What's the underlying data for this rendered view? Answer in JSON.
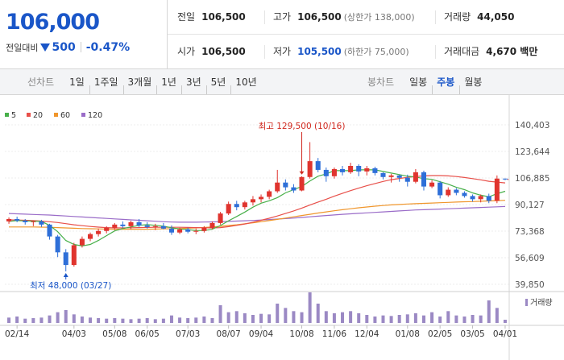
{
  "quote": {
    "price": "106,000",
    "change_label": "전일대비",
    "change_value": "500",
    "change_rate": "-0.47%",
    "row1": [
      {
        "label": "전일",
        "value": "106,500",
        "sub": ""
      },
      {
        "label": "고가",
        "value": "106,500",
        "sub": "(상한가 138,000)"
      },
      {
        "label": "거래량",
        "value": "44,050",
        "sub": ""
      }
    ],
    "row2": [
      {
        "label": "시가",
        "value": "106,500",
        "sub": ""
      },
      {
        "label": "저가",
        "value": "105,500",
        "sub": "(하한가 75,000)"
      },
      {
        "label": "거래대금",
        "value": "4,670 백만",
        "sub": ""
      }
    ]
  },
  "tabs": {
    "line_title": "선차트",
    "line_options": [
      "1일",
      "1주일",
      "3개월",
      "1년",
      "3년",
      "5년",
      "10년"
    ],
    "candle_title": "봉차트",
    "candle_options": [
      "일봉",
      "주봉",
      "월봉"
    ],
    "active_candle": "주봉"
  },
  "colors": {
    "up": "#e0342e",
    "down": "#2e6fd8",
    "ma5": "#48b04a",
    "ma20": "#e8504a",
    "ma60": "#f0962c",
    "ma120": "#9a6cc8",
    "volume": "#9b89c4"
  },
  "chart_data": {
    "type": "candlestick",
    "legend": [
      {
        "name": "5",
        "color": "#48b04a"
      },
      {
        "name": "20",
        "color": "#e8504a"
      },
      {
        "name": "60",
        "color": "#f0962c"
      },
      {
        "name": "120",
        "color": "#9a6cc8"
      }
    ],
    "y_ticks": [
      "140,403",
      "123,644",
      "106,885",
      "90,127",
      "73,368",
      "56,609",
      "39,850"
    ],
    "y_range": [
      39850,
      140403
    ],
    "x_ticks": [
      "02/14",
      "04/03",
      "05/08",
      "06/05",
      "07/03",
      "08/07",
      "09/04",
      "10/08",
      "11/06",
      "12/04",
      "01/08",
      "02/05",
      "03/05",
      "04/01"
    ],
    "x_tick_index": [
      1,
      8,
      13,
      17,
      22,
      27,
      31,
      36,
      40,
      44,
      49,
      53,
      57,
      61
    ],
    "annotation_high": "최고 129,500 (10/16)",
    "annotation_low": "최저 48,000 (03/27)",
    "high_index": 36,
    "low_index": 7,
    "volume_label": "거래량",
    "candles": [
      {
        "o": 79500,
        "h": 82000,
        "l": 78000,
        "c": 81000
      },
      {
        "o": 81000,
        "h": 82500,
        "l": 79000,
        "c": 80000
      },
      {
        "o": 80000,
        "h": 81000,
        "l": 77500,
        "c": 79000
      },
      {
        "o": 79000,
        "h": 80000,
        "l": 76500,
        "c": 79500
      },
      {
        "o": 79500,
        "h": 80500,
        "l": 76000,
        "c": 77500
      },
      {
        "o": 77500,
        "h": 78000,
        "l": 68000,
        "c": 70000
      },
      {
        "o": 70000,
        "h": 71000,
        "l": 57000,
        "c": 60000
      },
      {
        "o": 60000,
        "h": 62000,
        "l": 48000,
        "c": 52000
      },
      {
        "o": 52000,
        "h": 66000,
        "l": 51000,
        "c": 64500
      },
      {
        "o": 64500,
        "h": 70000,
        "l": 63000,
        "c": 68500
      },
      {
        "o": 68500,
        "h": 72500,
        "l": 67000,
        "c": 71500
      },
      {
        "o": 71500,
        "h": 75000,
        "l": 70000,
        "c": 73500
      },
      {
        "o": 73500,
        "h": 76500,
        "l": 72000,
        "c": 75500
      },
      {
        "o": 75500,
        "h": 78500,
        "l": 74000,
        "c": 77500
      },
      {
        "o": 77500,
        "h": 79500,
        "l": 75500,
        "c": 76500
      },
      {
        "o": 76500,
        "h": 80000,
        "l": 74500,
        "c": 79000
      },
      {
        "o": 79000,
        "h": 81000,
        "l": 76000,
        "c": 77000
      },
      {
        "o": 77000,
        "h": 79000,
        "l": 75000,
        "c": 76000
      },
      {
        "o": 76000,
        "h": 78000,
        "l": 74000,
        "c": 76500
      },
      {
        "o": 76500,
        "h": 78500,
        "l": 74500,
        "c": 75000
      },
      {
        "o": 75000,
        "h": 77000,
        "l": 71000,
        "c": 72500
      },
      {
        "o": 72500,
        "h": 75500,
        "l": 71500,
        "c": 74500
      },
      {
        "o": 74500,
        "h": 75500,
        "l": 72000,
        "c": 73000
      },
      {
        "o": 73000,
        "h": 75000,
        "l": 71500,
        "c": 73500
      },
      {
        "o": 73500,
        "h": 76500,
        "l": 72500,
        "c": 75500
      },
      {
        "o": 75500,
        "h": 79500,
        "l": 74500,
        "c": 78500
      },
      {
        "o": 78500,
        "h": 85500,
        "l": 77500,
        "c": 84500
      },
      {
        "o": 84500,
        "h": 92000,
        "l": 83500,
        "c": 90500
      },
      {
        "o": 90500,
        "h": 92500,
        "l": 86500,
        "c": 88500
      },
      {
        "o": 88500,
        "h": 92500,
        "l": 87000,
        "c": 91500
      },
      {
        "o": 91500,
        "h": 95500,
        "l": 89500,
        "c": 93500
      },
      {
        "o": 93500,
        "h": 96500,
        "l": 91500,
        "c": 95000
      },
      {
        "o": 95000,
        "h": 99500,
        "l": 93500,
        "c": 98500
      },
      {
        "o": 98500,
        "h": 112000,
        "l": 97500,
        "c": 104000
      },
      {
        "o": 104000,
        "h": 106000,
        "l": 99000,
        "c": 101000
      },
      {
        "o": 101000,
        "h": 103000,
        "l": 97500,
        "c": 99000
      },
      {
        "o": 99000,
        "h": 108000,
        "l": 98500,
        "c": 107500
      },
      {
        "o": 107500,
        "h": 129500,
        "l": 106500,
        "c": 117500
      },
      {
        "o": 117500,
        "h": 119500,
        "l": 110500,
        "c": 112000
      },
      {
        "o": 112000,
        "h": 113500,
        "l": 104500,
        "c": 108000
      },
      {
        "o": 108000,
        "h": 113500,
        "l": 106500,
        "c": 112500
      },
      {
        "o": 112500,
        "h": 114500,
        "l": 108500,
        "c": 110500
      },
      {
        "o": 110500,
        "h": 116500,
        "l": 109500,
        "c": 114500
      },
      {
        "o": 114500,
        "h": 115500,
        "l": 108000,
        "c": 111000
      },
      {
        "o": 111000,
        "h": 114500,
        "l": 108500,
        "c": 113000
      },
      {
        "o": 113000,
        "h": 114000,
        "l": 108500,
        "c": 110000
      },
      {
        "o": 110000,
        "h": 110500,
        "l": 106000,
        "c": 107500
      },
      {
        "o": 107500,
        "h": 109500,
        "l": 104000,
        "c": 108500
      },
      {
        "o": 108500,
        "h": 109000,
        "l": 104500,
        "c": 107000
      },
      {
        "o": 107000,
        "h": 109000,
        "l": 101500,
        "c": 104500
      },
      {
        "o": 104500,
        "h": 112500,
        "l": 103500,
        "c": 110500
      },
      {
        "o": 110500,
        "h": 111500,
        "l": 99000,
        "c": 101500
      },
      {
        "o": 101500,
        "h": 105500,
        "l": 100500,
        "c": 104000
      },
      {
        "o": 104000,
        "h": 105000,
        "l": 94000,
        "c": 96000
      },
      {
        "o": 96000,
        "h": 101000,
        "l": 95000,
        "c": 99500
      },
      {
        "o": 99500,
        "h": 100500,
        "l": 96000,
        "c": 97500
      },
      {
        "o": 97500,
        "h": 98500,
        "l": 94500,
        "c": 95500
      },
      {
        "o": 95500,
        "h": 96500,
        "l": 92000,
        "c": 93500
      },
      {
        "o": 93500,
        "h": 96500,
        "l": 91500,
        "c": 95500
      },
      {
        "o": 95500,
        "h": 97000,
        "l": 91000,
        "c": 92500
      },
      {
        "o": 92500,
        "h": 108500,
        "l": 91000,
        "c": 106500
      },
      {
        "o": 106500,
        "h": 106500,
        "l": 105500,
        "c": 106000
      }
    ],
    "ma5": [
      79500,
      80000,
      79800,
      79600,
      79500,
      77000,
      73000,
      67500,
      65000,
      64000,
      65000,
      67500,
      70500,
      73500,
      75000,
      76000,
      77000,
      77500,
      77000,
      76500,
      75500,
      74800,
      74300,
      73800,
      73700,
      74600,
      76900,
      79900,
      82600,
      85400,
      88500,
      91000,
      92500,
      94500,
      97500,
      99500,
      101500,
      105000,
      108000,
      109500,
      111500,
      111500,
      111500,
      112000,
      112000,
      112000,
      111000,
      110000,
      109000,
      108000,
      107500,
      106500,
      106000,
      104500,
      103000,
      101000,
      99500,
      97500,
      96000,
      95000,
      97000,
      98500
    ],
    "ma20": [
      80500,
      80400,
      80200,
      80000,
      79700,
      79300,
      78800,
      78100,
      77400,
      76800,
      76300,
      75900,
      75600,
      75400,
      75400,
      75500,
      75600,
      75700,
      75800,
      75800,
      75800,
      75800,
      75700,
      75600,
      75500,
      75400,
      75600,
      76200,
      77000,
      77900,
      79000,
      80200,
      81500,
      82900,
      84500,
      86100,
      87900,
      89800,
      91700,
      93500,
      95400,
      97200,
      98900,
      100500,
      102000,
      103400,
      104700,
      105800,
      106600,
      107300,
      107800,
      108200,
      108400,
      108400,
      108200,
      107800,
      107200,
      106500,
      105700,
      104800,
      104300,
      103800
    ],
    "ma60": [
      76000,
      76000,
      76000,
      76000,
      75900,
      75800,
      75600,
      75400,
      75200,
      75000,
      74900,
      74800,
      74700,
      74600,
      74600,
      74600,
      74600,
      74600,
      74700,
      74800,
      74900,
      75000,
      75200,
      75400,
      75700,
      76000,
      76400,
      76900,
      77400,
      78000,
      78600,
      79300,
      80000,
      80800,
      81600,
      82400,
      83200,
      84000,
      84800,
      85500,
      86200,
      86900,
      87500,
      88100,
      88600,
      89100,
      89500,
      89900,
      90200,
      90500,
      90700,
      90900,
      91100,
      91300,
      91500,
      91700,
      91900,
      92000,
      92200,
      92400,
      92600,
      92800
    ],
    "ma120": [
      84500,
      84300,
      84100,
      83900,
      83700,
      83500,
      83200,
      82900,
      82600,
      82300,
      82000,
      81700,
      81400,
      81100,
      80800,
      80500,
      80200,
      79900,
      79600,
      79300,
      79100,
      79000,
      79000,
      79000,
      79100,
      79200,
      79300,
      79500,
      79700,
      79900,
      80100,
      80400,
      80700,
      81000,
      81300,
      81600,
      82000,
      82400,
      82800,
      83200,
      83600,
      84000,
      84300,
      84600,
      84900,
      85200,
      85500,
      85800,
      86100,
      86400,
      86700,
      86900,
      87100,
      87300,
      87500,
      87700,
      87900,
      88100,
      88300,
      88500,
      88700,
      88900
    ],
    "volume": [
      10,
      12,
      8,
      9,
      10,
      14,
      20,
      24,
      16,
      12,
      10,
      9,
      8,
      9,
      8,
      7,
      8,
      9,
      7,
      8,
      14,
      10,
      9,
      10,
      12,
      9,
      33,
      20,
      22,
      18,
      15,
      17,
      16,
      36,
      28,
      22,
      20,
      57,
      36,
      22,
      18,
      20,
      22,
      18,
      15,
      12,
      14,
      13,
      15,
      16,
      18,
      14,
      20,
      12,
      22,
      14,
      12,
      15,
      14,
      42,
      28,
      6
    ]
  }
}
